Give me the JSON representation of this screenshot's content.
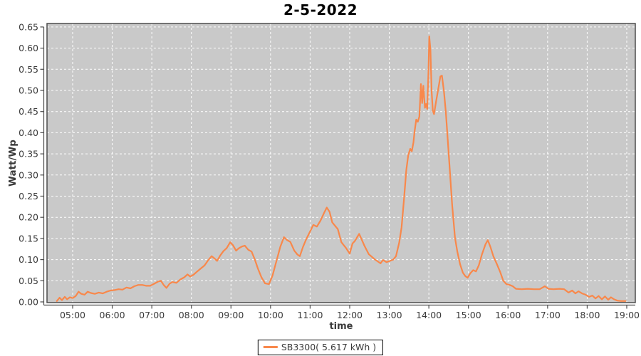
{
  "title": "2-5-2022",
  "legend": {
    "label": "SB3300( 5.617 kWh )"
  },
  "colors": {
    "line": "#f8884b",
    "plot_bg": "#c9c9c9",
    "grid": "#ffffff",
    "axis": "#4d4d4d",
    "tick_text": "#3a3a3a",
    "title_text": "#000000"
  },
  "chart_data": {
    "type": "line",
    "title": "2-5-2022",
    "xlabel": "time",
    "ylabel": "Watt/Wp",
    "legend_position": "bottom-center",
    "grid": "white dashed, on",
    "plot_background": "#c9c9c9",
    "ylim": [
      0.0,
      0.65
    ],
    "y_tick_step": 0.05,
    "y_ticks": [
      "0.00",
      "0.05",
      "0.10",
      "0.15",
      "0.20",
      "0.25",
      "0.30",
      "0.35",
      "0.40",
      "0.45",
      "0.50",
      "0.55",
      "0.60",
      "0.65"
    ],
    "x_ticks": [
      {
        "hour": 5,
        "label": "05:00"
      },
      {
        "hour": 6,
        "label": "06:00"
      },
      {
        "hour": 7,
        "label": "07:00"
      },
      {
        "hour": 8,
        "label": "08:00"
      },
      {
        "hour": 9,
        "label": "09:00"
      },
      {
        "hour": 10,
        "label": "10:00"
      },
      {
        "hour": 11,
        "label": "11:00"
      },
      {
        "hour": 12,
        "label": "12:00"
      },
      {
        "hour": 13,
        "label": "13:00"
      },
      {
        "hour": 14,
        "label": "14:00"
      },
      {
        "hour": 15,
        "label": "15:00"
      },
      {
        "hour": 16,
        "label": "16:00"
      },
      {
        "hour": 17,
        "label": "17:00"
      },
      {
        "hour": 18,
        "label": "18:00"
      },
      {
        "hour": 19,
        "label": "19:00"
      }
    ],
    "xlim_hours": [
      4.35,
      19.22
    ],
    "series": [
      {
        "name": "SB3300( 5.617 kWh )",
        "color": "#f8884b",
        "points": [
          [
            4.6,
            0.002
          ],
          [
            4.67,
            0.01
          ],
          [
            4.73,
            0.004
          ],
          [
            4.8,
            0.012
          ],
          [
            4.86,
            0.006
          ],
          [
            4.93,
            0.011
          ],
          [
            5.0,
            0.009
          ],
          [
            5.08,
            0.014
          ],
          [
            5.15,
            0.024
          ],
          [
            5.22,
            0.019
          ],
          [
            5.3,
            0.017
          ],
          [
            5.38,
            0.024
          ],
          [
            5.46,
            0.021
          ],
          [
            5.56,
            0.019
          ],
          [
            5.66,
            0.022
          ],
          [
            5.76,
            0.02
          ],
          [
            5.86,
            0.024
          ],
          [
            5.96,
            0.027
          ],
          [
            6.06,
            0.028
          ],
          [
            6.16,
            0.03
          ],
          [
            6.26,
            0.029
          ],
          [
            6.36,
            0.034
          ],
          [
            6.46,
            0.032
          ],
          [
            6.56,
            0.037
          ],
          [
            6.66,
            0.04
          ],
          [
            6.76,
            0.04
          ],
          [
            6.86,
            0.038
          ],
          [
            6.96,
            0.038
          ],
          [
            7.06,
            0.043
          ],
          [
            7.16,
            0.048
          ],
          [
            7.23,
            0.05
          ],
          [
            7.3,
            0.04
          ],
          [
            7.37,
            0.033
          ],
          [
            7.45,
            0.043
          ],
          [
            7.52,
            0.047
          ],
          [
            7.62,
            0.045
          ],
          [
            7.72,
            0.053
          ],
          [
            7.82,
            0.058
          ],
          [
            7.9,
            0.065
          ],
          [
            7.97,
            0.06
          ],
          [
            8.05,
            0.064
          ],
          [
            8.15,
            0.072
          ],
          [
            8.25,
            0.08
          ],
          [
            8.33,
            0.086
          ],
          [
            8.42,
            0.098
          ],
          [
            8.51,
            0.108
          ],
          [
            8.58,
            0.103
          ],
          [
            8.65,
            0.097
          ],
          [
            8.73,
            0.11
          ],
          [
            8.81,
            0.12
          ],
          [
            8.89,
            0.127
          ],
          [
            8.98,
            0.141
          ],
          [
            9.05,
            0.134
          ],
          [
            9.13,
            0.121
          ],
          [
            9.2,
            0.127
          ],
          [
            9.28,
            0.131
          ],
          [
            9.35,
            0.133
          ],
          [
            9.44,
            0.123
          ],
          [
            9.52,
            0.119
          ],
          [
            9.6,
            0.101
          ],
          [
            9.68,
            0.079
          ],
          [
            9.77,
            0.058
          ],
          [
            9.86,
            0.044
          ],
          [
            9.96,
            0.042
          ],
          [
            10.05,
            0.062
          ],
          [
            10.15,
            0.097
          ],
          [
            10.25,
            0.131
          ],
          [
            10.34,
            0.153
          ],
          [
            10.42,
            0.146
          ],
          [
            10.5,
            0.142
          ],
          [
            10.6,
            0.121
          ],
          [
            10.68,
            0.112
          ],
          [
            10.74,
            0.108
          ],
          [
            10.82,
            0.13
          ],
          [
            10.9,
            0.148
          ],
          [
            10.98,
            0.163
          ],
          [
            11.08,
            0.182
          ],
          [
            11.17,
            0.178
          ],
          [
            11.26,
            0.192
          ],
          [
            11.35,
            0.21
          ],
          [
            11.42,
            0.223
          ],
          [
            11.49,
            0.213
          ],
          [
            11.56,
            0.188
          ],
          [
            11.63,
            0.18
          ],
          [
            11.7,
            0.172
          ],
          [
            11.79,
            0.141
          ],
          [
            11.91,
            0.127
          ],
          [
            12.0,
            0.114
          ],
          [
            12.07,
            0.138
          ],
          [
            12.13,
            0.144
          ],
          [
            12.24,
            0.161
          ],
          [
            12.37,
            0.133
          ],
          [
            12.48,
            0.113
          ],
          [
            12.64,
            0.1
          ],
          [
            12.78,
            0.091
          ],
          [
            12.84,
            0.099
          ],
          [
            12.93,
            0.094
          ],
          [
            13.02,
            0.097
          ],
          [
            13.1,
            0.1
          ],
          [
            13.17,
            0.108
          ],
          [
            13.25,
            0.14
          ],
          [
            13.31,
            0.176
          ],
          [
            13.37,
            0.24
          ],
          [
            13.43,
            0.312
          ],
          [
            13.48,
            0.347
          ],
          [
            13.53,
            0.362
          ],
          [
            13.57,
            0.356
          ],
          [
            13.61,
            0.377
          ],
          [
            13.64,
            0.403
          ],
          [
            13.68,
            0.431
          ],
          [
            13.72,
            0.426
          ],
          [
            13.76,
            0.438
          ],
          [
            13.8,
            0.515
          ],
          [
            13.83,
            0.47
          ],
          [
            13.86,
            0.511
          ],
          [
            13.9,
            0.459
          ],
          [
            13.93,
            0.468
          ],
          [
            13.96,
            0.456
          ],
          [
            13.99,
            0.545
          ],
          [
            14.01,
            0.628
          ],
          [
            14.04,
            0.595
          ],
          [
            14.07,
            0.498
          ],
          [
            14.1,
            0.452
          ],
          [
            14.13,
            0.444
          ],
          [
            14.18,
            0.472
          ],
          [
            14.24,
            0.505
          ],
          [
            14.29,
            0.533
          ],
          [
            14.33,
            0.535
          ],
          [
            14.38,
            0.498
          ],
          [
            14.43,
            0.448
          ],
          [
            14.48,
            0.38
          ],
          [
            14.54,
            0.298
          ],
          [
            14.59,
            0.228
          ],
          [
            14.66,
            0.152
          ],
          [
            14.72,
            0.118
          ],
          [
            14.79,
            0.089
          ],
          [
            14.86,
            0.069
          ],
          [
            14.92,
            0.061
          ],
          [
            14.98,
            0.057
          ],
          [
            15.05,
            0.068
          ],
          [
            15.12,
            0.075
          ],
          [
            15.19,
            0.072
          ],
          [
            15.26,
            0.086
          ],
          [
            15.34,
            0.112
          ],
          [
            15.43,
            0.136
          ],
          [
            15.49,
            0.146
          ],
          [
            15.56,
            0.129
          ],
          [
            15.63,
            0.108
          ],
          [
            15.72,
            0.089
          ],
          [
            15.8,
            0.071
          ],
          [
            15.88,
            0.05
          ],
          [
            15.96,
            0.042
          ],
          [
            16.04,
            0.04
          ],
          [
            16.12,
            0.037
          ],
          [
            16.2,
            0.031
          ],
          [
            16.35,
            0.03
          ],
          [
            16.5,
            0.031
          ],
          [
            16.65,
            0.03
          ],
          [
            16.8,
            0.03
          ],
          [
            16.93,
            0.037
          ],
          [
            17.02,
            0.031
          ],
          [
            17.15,
            0.03
          ],
          [
            17.3,
            0.031
          ],
          [
            17.42,
            0.03
          ],
          [
            17.53,
            0.022
          ],
          [
            17.62,
            0.027
          ],
          [
            17.7,
            0.02
          ],
          [
            17.78,
            0.025
          ],
          [
            17.87,
            0.02
          ],
          [
            17.96,
            0.017
          ],
          [
            18.05,
            0.012
          ],
          [
            18.13,
            0.015
          ],
          [
            18.21,
            0.008
          ],
          [
            18.29,
            0.014
          ],
          [
            18.37,
            0.006
          ],
          [
            18.45,
            0.013
          ],
          [
            18.53,
            0.005
          ],
          [
            18.6,
            0.011
          ],
          [
            18.68,
            0.006
          ],
          [
            18.76,
            0.003
          ],
          [
            18.86,
            0.002
          ],
          [
            18.97,
            0.002
          ]
        ]
      }
    ]
  }
}
